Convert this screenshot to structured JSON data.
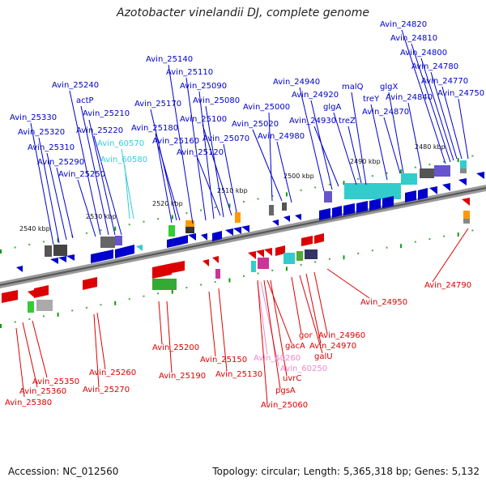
{
  "title": "Azotobacter vinelandii DJ, complete genome",
  "footer": {
    "accession": "Accession: NC_012560",
    "stats": "Topology: circular; Length: 5,365,318 bp; Genes: 5,132"
  },
  "colors": {
    "forward": "#0000cc",
    "reverse": "#dd0000",
    "rna": "#33cccc",
    "pseudo": "#ee88cc",
    "axis": "#888888"
  },
  "kbp_ticks": [
    "2480 kbp",
    "2490 kbp",
    "2500 kbp",
    "2510 kbp",
    "2520 kbp",
    "2530 kbp",
    "2540 kbp"
  ],
  "top_labels": [
    "Avin_25330",
    "Avin_25320",
    "Avin_25310",
    "Avin_25290",
    "Avin_25250",
    "Avin_25240",
    "actP",
    "Avin_25220",
    "Avin_25210",
    "Avin_60570",
    "Avin_60580",
    "Avin_25140",
    "Avin_25110",
    "Avin_25090",
    "Avin_25080",
    "Avin_25170",
    "Avin_25100",
    "Avin_25180",
    "Avin_25160",
    "Avin_25120",
    "Avin_25070",
    "Avin_25000",
    "Avin_25020",
    "Avin_24980",
    "Avin_24940",
    "Avin_24920",
    "Avin_24930",
    "malQ",
    "glgA",
    "treZ",
    "treY",
    "glgX",
    "Avin_24870",
    "Avin_24840",
    "Avin_24820",
    "Avin_24810",
    "Avin_24800",
    "Avin_24780",
    "Avin_24770",
    "Avin_24750"
  ],
  "bottom_labels": [
    "Avin_25380",
    "Avin_25360",
    "Avin_25350",
    "Avin_25270",
    "Avin_25260",
    "Avin_25200",
    "Avin_25190",
    "Avin_25150",
    "Avin_25130",
    "Avin_60260",
    "Avin_60250",
    "gacA",
    "uvrC",
    "pgsA",
    "Avin_25060",
    "gor",
    "galU",
    "Avin_24970",
    "Avin_24960",
    "Avin_24950",
    "Avin_24790"
  ]
}
